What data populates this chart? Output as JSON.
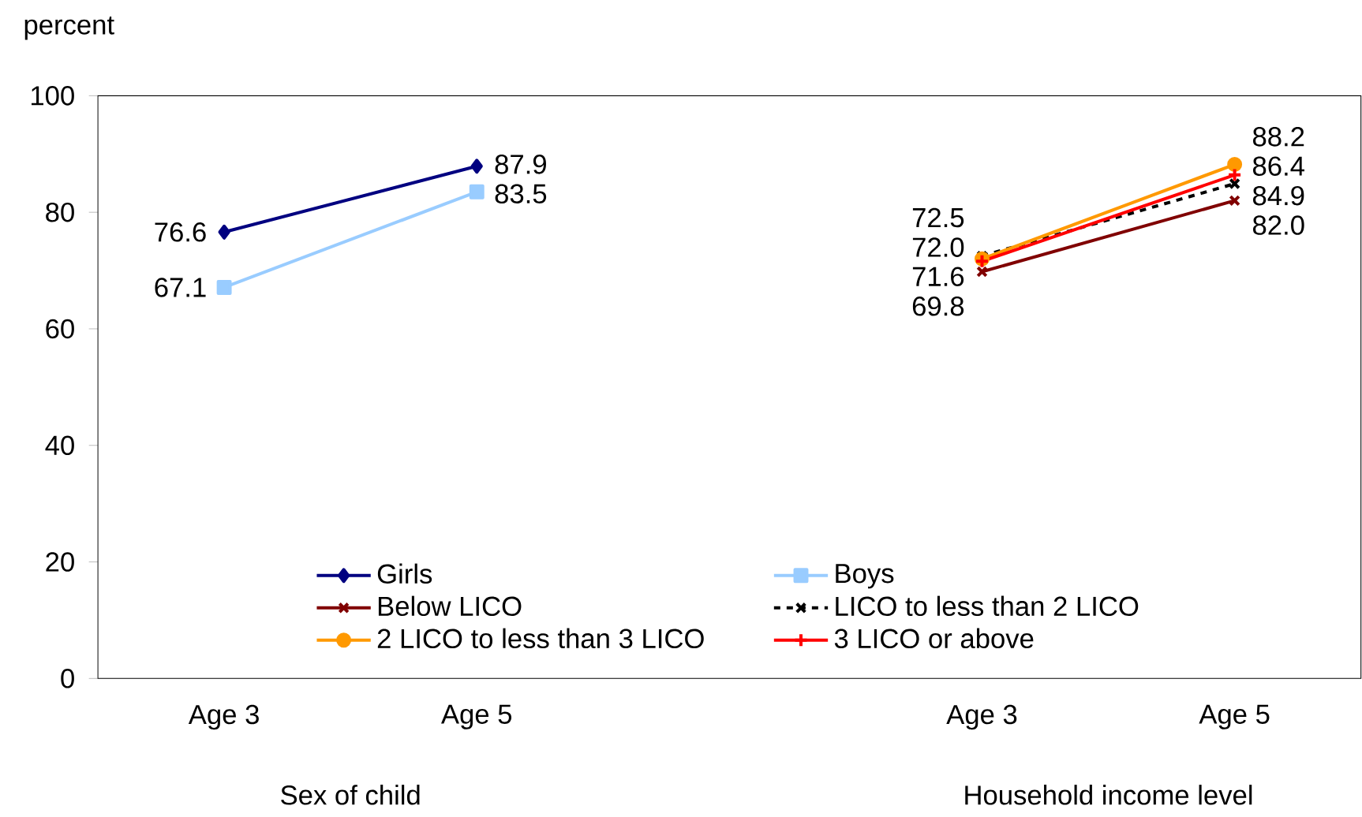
{
  "chart_data": {
    "type": "line",
    "ylabel": "percent",
    "categories": [
      "Age 3",
      "Age 5",
      null,
      "Age 3",
      "Age 5"
    ],
    "series": [
      {
        "name": "Girls",
        "color": "#000080",
        "marker": "diamond",
        "values": [
          76.6,
          87.9,
          null,
          null,
          null
        ],
        "value_labels": [
          "76.6",
          "87.9",
          null,
          null,
          null
        ]
      },
      {
        "name": "Boys",
        "color": "#99ccff",
        "marker": "square",
        "values": [
          67.1,
          83.5,
          null,
          null,
          null
        ],
        "value_labels": [
          "67.1",
          "83.5",
          null,
          null,
          null
        ]
      },
      {
        "name": "Below  LICO",
        "color": "#800000",
        "marker": "cross",
        "values": [
          null,
          null,
          null,
          69.8,
          82.0
        ],
        "value_labels": [
          null,
          null,
          null,
          "69.8",
          "82.0"
        ]
      },
      {
        "name": "LICO to less than 2 LICO",
        "color": "#000000",
        "marker": "cross",
        "line_style": "dashed",
        "values": [
          null,
          null,
          null,
          72.5,
          84.9
        ],
        "value_labels": [
          null,
          null,
          null,
          "72.5",
          "84.9"
        ]
      },
      {
        "name": "2 LICO to less than 3 LICO",
        "color": "#ff9900",
        "marker": "circle",
        "values": [
          null,
          null,
          null,
          72.0,
          88.2
        ],
        "value_labels": [
          null,
          null,
          null,
          "72.0",
          "88.2"
        ]
      },
      {
        "name": "3 LICO or above",
        "color": "#ff0000",
        "marker": "plus",
        "values": [
          null,
          null,
          null,
          71.6,
          86.4
        ],
        "value_labels": [
          null,
          null,
          null,
          "71.6",
          "86.4"
        ]
      }
    ],
    "ylim": [
      0,
      100
    ],
    "yticks": [
      0,
      20,
      40,
      60,
      80,
      100
    ],
    "legend": "bottom",
    "annotations": [
      "Sex of child",
      "Household income level"
    ]
  }
}
